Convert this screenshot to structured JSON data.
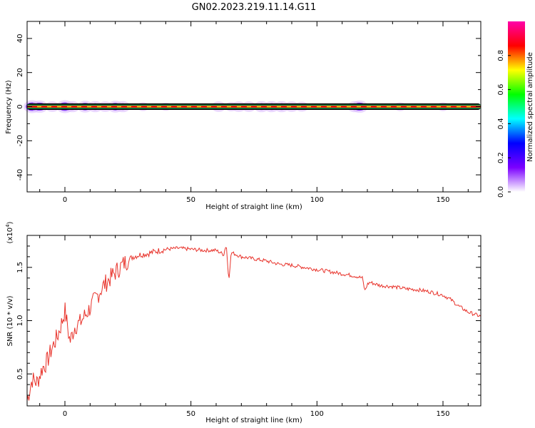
{
  "title": "GN02.2023.219.11.14.G11",
  "chart_data": [
    {
      "type": "heatmap",
      "xlabel": "Height of straight line (km)",
      "ylabel": "Frequency (Hz)",
      "xlim": [
        -15,
        165
      ],
      "ylim": [
        -50,
        50
      ],
      "x_ticks": [
        0,
        50,
        100,
        150
      ],
      "y_ticks": [
        -40,
        -20,
        0,
        20,
        40
      ],
      "colorbar": {
        "label": "Normalized spectral amplitude",
        "range": [
          0,
          1
        ],
        "ticks": [
          "0.0",
          "0.2",
          "0.4",
          "0.6",
          "0.8"
        ],
        "colors": [
          "#ffffff",
          "#7b00ff",
          "#0000ff",
          "#00ffff",
          "#00ff00",
          "#ffff00",
          "#ff0000",
          "#ff00aa"
        ]
      },
      "line_frequency_hz": 0,
      "band_colors": [
        "#000000",
        "#00c060",
        "#ff0000",
        "#ffff00"
      ],
      "spread_points": [
        {
          "x": -13,
          "amp": 1.0
        },
        {
          "x": -10,
          "amp": 0.9
        },
        {
          "x": -5,
          "amp": 0.6
        },
        {
          "x": 0,
          "amp": 1.0
        },
        {
          "x": 3,
          "amp": 0.7
        },
        {
          "x": 8,
          "amp": 0.8
        },
        {
          "x": 12,
          "amp": 0.7
        },
        {
          "x": 16,
          "amp": 0.6
        },
        {
          "x": 20,
          "amp": 0.8
        },
        {
          "x": 23,
          "amp": 0.7
        },
        {
          "x": 31,
          "amp": 0.3
        },
        {
          "x": 40,
          "amp": 0.2
        },
        {
          "x": 61,
          "amp": 0.6
        },
        {
          "x": 66,
          "amp": 0.4
        },
        {
          "x": 69,
          "amp": 0.6
        },
        {
          "x": 73,
          "amp": 0.6
        },
        {
          "x": 78,
          "amp": 0.7
        },
        {
          "x": 82,
          "amp": 0.7
        },
        {
          "x": 86,
          "amp": 0.7
        },
        {
          "x": 90,
          "amp": 0.6
        },
        {
          "x": 94,
          "amp": 0.5
        },
        {
          "x": 115,
          "amp": 0.7
        },
        {
          "x": 117,
          "amp": 0.9
        },
        {
          "x": 133,
          "amp": 0.3
        },
        {
          "x": 150,
          "amp": 0.3
        }
      ]
    },
    {
      "type": "line",
      "xlabel": "Height of straight line (km)",
      "ylabel": "SNR (10 * v/v)",
      "y_multiplier": "(x10",
      "y_multiplier_exp": "4",
      "y_multiplier_close": ")",
      "xlim": [
        -15,
        165
      ],
      "ylim": [
        0.2,
        1.8
      ],
      "x_ticks": [
        0,
        50,
        100,
        150
      ],
      "y_ticks": [
        "0.5",
        "1.0",
        "1.5"
      ],
      "color": "#e8332b",
      "series": [
        {
          "x": [
            -15,
            -13,
            -11,
            -9,
            -7,
            -5,
            -3,
            -1,
            0,
            2,
            4,
            6,
            8,
            10,
            12,
            15,
            18,
            21,
            24,
            27,
            30,
            33,
            36,
            40,
            45,
            50,
            55,
            60,
            63,
            64,
            65,
            66,
            70,
            75,
            80,
            85,
            90,
            95,
            100,
            105,
            110,
            115,
            118,
            119,
            120,
            121,
            125,
            130,
            135,
            140,
            145,
            150,
            153,
            156,
            160,
            165
          ],
          "y": [
            0.25,
            0.45,
            0.42,
            0.55,
            0.62,
            0.75,
            0.85,
            1.0,
            1.1,
            0.8,
            0.95,
            0.98,
            1.05,
            1.12,
            1.2,
            1.32,
            1.4,
            1.48,
            1.55,
            1.6,
            1.62,
            1.63,
            1.65,
            1.67,
            1.68,
            1.67,
            1.66,
            1.66,
            1.62,
            1.72,
            1.38,
            1.64,
            1.6,
            1.58,
            1.56,
            1.53,
            1.52,
            1.5,
            1.48,
            1.46,
            1.44,
            1.42,
            1.4,
            1.28,
            1.34,
            1.36,
            1.33,
            1.32,
            1.3,
            1.29,
            1.27,
            1.24,
            1.2,
            1.14,
            1.08,
            1.04
          ]
        }
      ]
    }
  ]
}
